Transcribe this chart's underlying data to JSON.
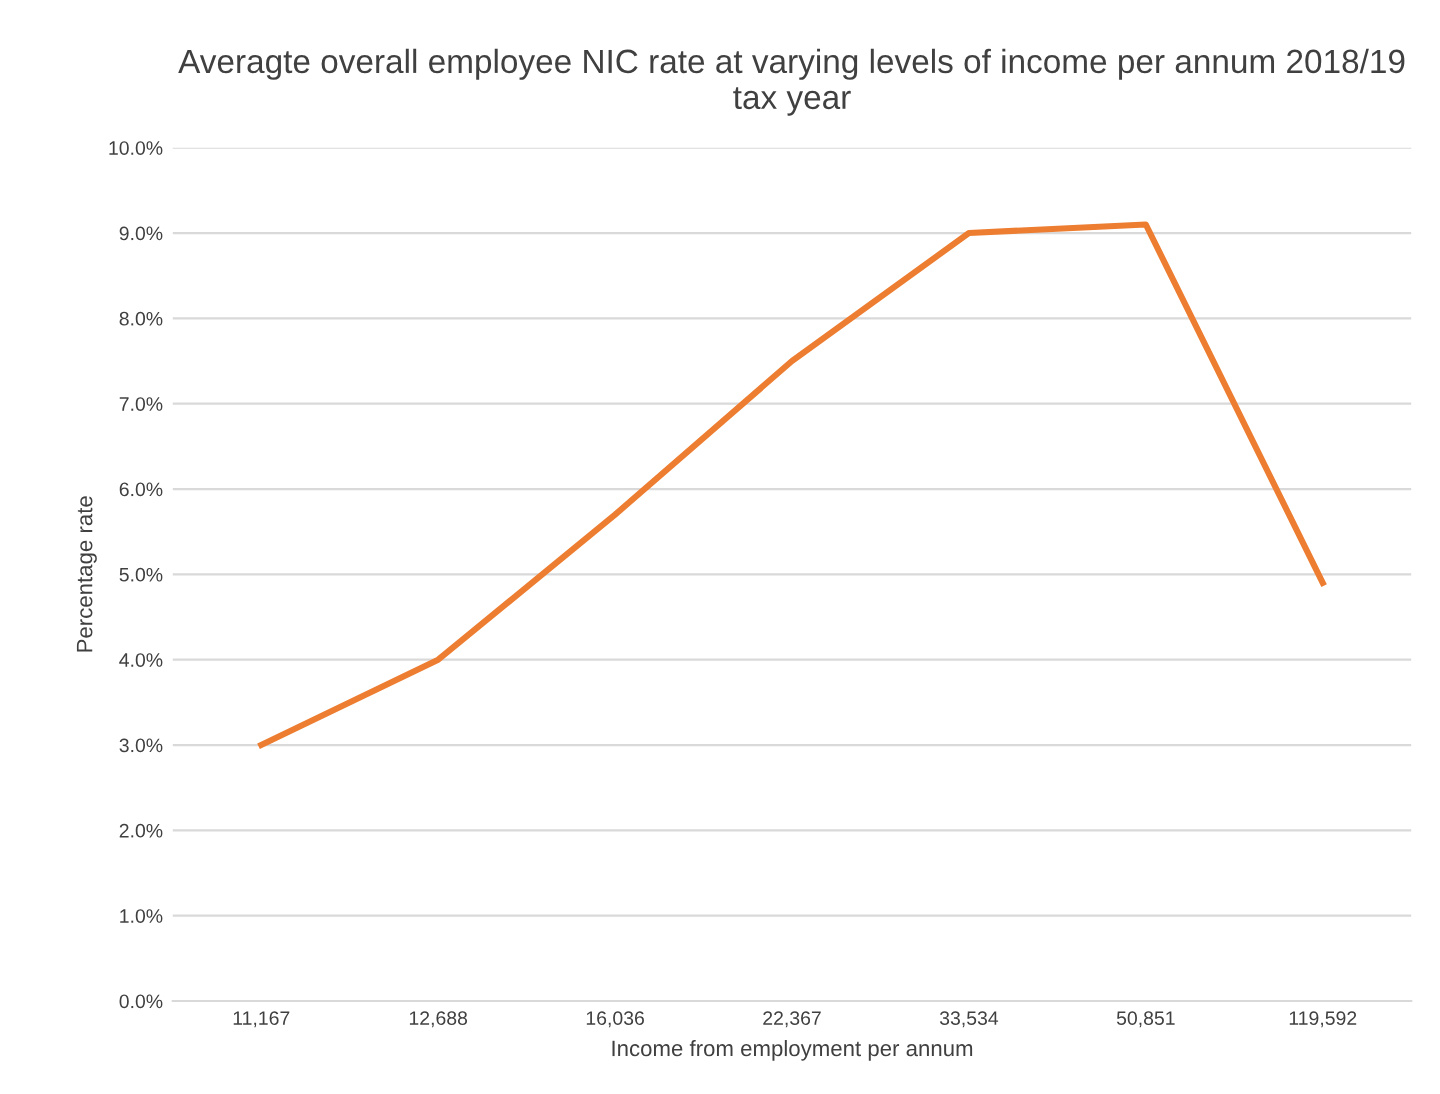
{
  "chart_data": {
    "type": "line",
    "title": "Averagte overall employee NIC rate at varying levels of income per annum 2018/19\ntax year",
    "xlabel": "Income from employment per annum",
    "ylabel": "Percentage rate",
    "categories": [
      "11,167",
      "12,688",
      "16,036",
      "22,367",
      "33,534",
      "50,851",
      "119,592"
    ],
    "series": [
      {
        "color": "#ed7d31",
        "values": [
          3.0,
          4.0,
          5.7,
          7.5,
          9.0,
          9.1,
          4.9
        ]
      }
    ],
    "ylim": [
      0,
      10
    ],
    "yticks": [
      {
        "value": 0,
        "label": "0.0%"
      },
      {
        "value": 1,
        "label": "1.0%"
      },
      {
        "value": 2,
        "label": "2.0%"
      },
      {
        "value": 3,
        "label": "3.0%"
      },
      {
        "value": 4,
        "label": "4.0%"
      },
      {
        "value": 5,
        "label": "5.0%"
      },
      {
        "value": 6,
        "label": "6.0%"
      },
      {
        "value": 7,
        "label": "7.0%"
      },
      {
        "value": 8,
        "label": "8.0%"
      },
      {
        "value": 9,
        "label": "9.0%"
      },
      {
        "value": 10,
        "label": "10.0%"
      }
    ],
    "grid": "y",
    "legend": false,
    "marker": "none",
    "line_style": "solid"
  }
}
